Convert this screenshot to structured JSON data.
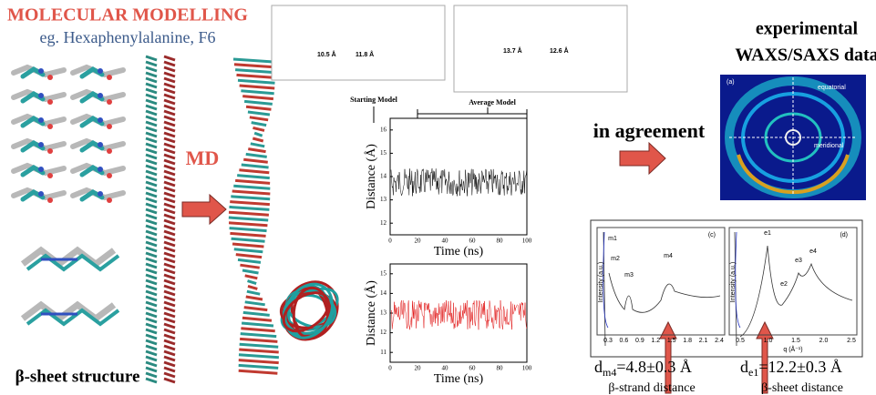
{
  "left": {
    "title": "MOLECULAR MODELLING",
    "subtitle": "eg. Hexaphenylalanine, F6",
    "structure_label": "β-sheet structure",
    "md_label": "MD"
  },
  "models": {
    "start": {
      "d1": "10.5 Å",
      "d2": "11.8 Å",
      "label": "Starting Model"
    },
    "average": {
      "d1": "13.7 Å",
      "d2": "12.6 Å",
      "label": "Average Model"
    }
  },
  "plots": [
    {
      "ylabel": "Distance (Å)",
      "xlabel": "Time (ns)",
      "yticks": [
        "16",
        "15",
        "14",
        "13",
        "12"
      ],
      "xticks": [
        "0",
        "20",
        "40",
        "60",
        "80",
        "100"
      ]
    },
    {
      "ylabel": "Distance (Å)",
      "xlabel": "Time (ns)",
      "yticks": [
        "15",
        "14",
        "13",
        "12",
        "11"
      ],
      "xticks": [
        "0",
        "20",
        "40",
        "60",
        "80",
        "100"
      ]
    }
  ],
  "agreement": "in agreement",
  "experimental": {
    "line1": "experimental",
    "line2": "WAXS/SAXS data",
    "panel": "(a)",
    "equatorial": "equatorial",
    "meridional": "meridional"
  },
  "spectra": [
    {
      "panel": "(c)",
      "ylabel": "Intensity (a.u.)",
      "peaks": [
        "m1",
        "m2",
        "m3",
        "m4"
      ],
      "xticks": [
        "0.3",
        "0.6",
        "0.9",
        "1.2",
        "1.5",
        "1.8",
        "2.1",
        "2.4"
      ]
    },
    {
      "panel": "(d)",
      "ylabel": "Intensity (a.u.)",
      "peaks": [
        "e1",
        "e2",
        "e3",
        "e4"
      ],
      "xticks": [
        "0.5",
        "1.0",
        "1.5",
        "2.0",
        "2.5"
      ],
      "xlabel": "q (Å⁻¹)"
    }
  ],
  "results": [
    {
      "symbol": "d",
      "sub": "m4",
      "value": "=4.8±0.3 Å",
      "caption": "β-strand distance"
    },
    {
      "symbol": "d",
      "sub": "e1",
      "value": "=12.2±0.3 Å",
      "caption": "β-sheet distance"
    }
  ]
}
